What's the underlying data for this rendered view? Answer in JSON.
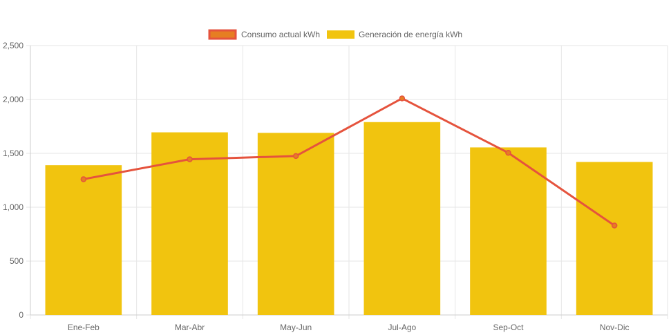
{
  "chart_data": {
    "type": "bar",
    "categories": [
      "Ene-Feb",
      "Mar-Abr",
      "May-Jun",
      "Jul-Ago",
      "Sep-Oct",
      "Nov-Dic"
    ],
    "series": [
      {
        "name": "Consumo actual kWh",
        "type": "line",
        "values": [
          1260,
          1445,
          1475,
          2010,
          1505,
          830
        ],
        "color": "#e5533d",
        "fill_color": "#e67e22"
      },
      {
        "name": "Generación de energía kWh",
        "type": "bar",
        "values": [
          1390,
          1695,
          1690,
          1790,
          1555,
          1420
        ],
        "color": "#f1c40f"
      }
    ],
    "ylim": [
      0,
      2500
    ],
    "yticks": [
      0,
      500,
      1000,
      1500,
      2000,
      2500
    ],
    "ytick_labels": [
      "0",
      "500",
      "1,000",
      "1,500",
      "2,000",
      "2,500"
    ],
    "grid": true,
    "legend_position": "top-center"
  }
}
